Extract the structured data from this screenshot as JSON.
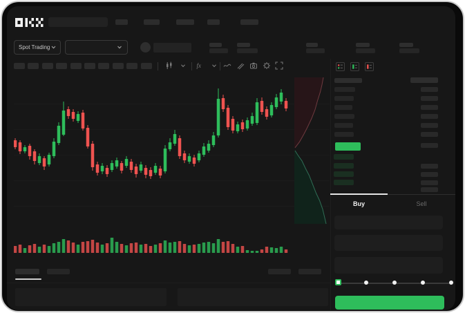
{
  "brand": {
    "logo": "OKX"
  },
  "header": {
    "nav_item_count": 5
  },
  "market_bar": {
    "market_type_label": "Spot Trading",
    "stat_pair_count": 5
  },
  "chart_toolbar": {
    "timeframe_button_count": 10,
    "icons": [
      "candle-style-icon",
      "chevron-down-icon",
      "indicators-fx-icon",
      "chevron-down-icon",
      "line-tool-icon",
      "draw-tool-icon",
      "camera-icon",
      "settings-gear-icon",
      "fullscreen-icon"
    ]
  },
  "order_book": {
    "view_icons": [
      "book-combined-icon",
      "book-buy-icon",
      "book-sell-icon"
    ],
    "ask_row_count": 6,
    "bid_row_count": 4,
    "amount_row_count": 4,
    "last_price_color": "#2EBD5B"
  },
  "trade_panel": {
    "buy_tab": "Buy",
    "sell_tab": "Sell",
    "input_count": 3,
    "slider_step_count": 5,
    "submit_color": "#2EBD5B"
  },
  "colors": {
    "up": "#2EBD5B",
    "down": "#EF5350",
    "app_bg": "#171717",
    "block": "#2C2C2C",
    "bid_row_tint": "rgba(46,189,91,0.15)"
  },
  "chart_data": [
    {
      "type": "candlestick",
      "title": "",
      "axis_labels": "none-visible",
      "up_color": "#2EBD5B",
      "down_color": "#EF5350",
      "columns": [
        "open",
        "high",
        "low",
        "close"
      ],
      "candles": [
        [
          137,
          140,
          124,
          127
        ],
        [
          134,
          137,
          117,
          121
        ],
        [
          121,
          130,
          118,
          127
        ],
        [
          129,
          132,
          109,
          114
        ],
        [
          121,
          124,
          102,
          107
        ],
        [
          104,
          118,
          101,
          114
        ],
        [
          111,
          114,
          94,
          99
        ],
        [
          102,
          119,
          99,
          116
        ],
        [
          114,
          140,
          111,
          135
        ],
        [
          133,
          163,
          130,
          158
        ],
        [
          145,
          193,
          143,
          180
        ],
        [
          182,
          186,
          168,
          172
        ],
        [
          178,
          182,
          164,
          168
        ],
        [
          165,
          179,
          162,
          175
        ],
        [
          177,
          181,
          151,
          154
        ],
        [
          155,
          159,
          125,
          128
        ],
        [
          132,
          136,
          93,
          98
        ],
        [
          102,
          106,
          86,
          90
        ],
        [
          92,
          104,
          88,
          100
        ],
        [
          97,
          101,
          84,
          88
        ],
        [
          94,
          108,
          91,
          104
        ],
        [
          99,
          112,
          96,
          108
        ],
        [
          104,
          107,
          89,
          93
        ],
        [
          100,
          114,
          97,
          110
        ],
        [
          106,
          110,
          90,
          94
        ],
        [
          99,
          103,
          83,
          88
        ],
        [
          93,
          106,
          90,
          102
        ],
        [
          97,
          101,
          82,
          87
        ],
        [
          94,
          98,
          81,
          85
        ],
        [
          90,
          104,
          87,
          100
        ],
        [
          96,
          100,
          82,
          86
        ],
        [
          92,
          130,
          89,
          125
        ],
        [
          124,
          140,
          121,
          134
        ],
        [
          132,
          152,
          129,
          146
        ],
        [
          140,
          144,
          110,
          114
        ],
        [
          118,
          122,
          104,
          108
        ],
        [
          106,
          118,
          103,
          114
        ],
        [
          112,
          116,
          99,
          103
        ],
        [
          108,
          122,
          105,
          118
        ],
        [
          116,
          133,
          113,
          128
        ],
        [
          122,
          137,
          119,
          132
        ],
        [
          130,
          149,
          127,
          144
        ],
        [
          144,
          212,
          141,
          197
        ],
        [
          198,
          203,
          178,
          182
        ],
        [
          184,
          188,
          152,
          156
        ],
        [
          168,
          172,
          147,
          151
        ],
        [
          150,
          164,
          147,
          160
        ],
        [
          163,
          167,
          149,
          153
        ],
        [
          154,
          170,
          151,
          166
        ],
        [
          161,
          177,
          158,
          172
        ],
        [
          162,
          198,
          159,
          192
        ],
        [
          194,
          199,
          174,
          178
        ],
        [
          182,
          186,
          167,
          171
        ],
        [
          173,
          192,
          170,
          188
        ],
        [
          185,
          204,
          182,
          199
        ],
        [
          193,
          211,
          189,
          206
        ],
        [
          194,
          198,
          179,
          183
        ]
      ],
      "volume": [
        10,
        12,
        7,
        11,
        13,
        9,
        12,
        10,
        14,
        16,
        20,
        18,
        15,
        12,
        16,
        17,
        19,
        15,
        12,
        14,
        22,
        16,
        13,
        11,
        14,
        15,
        12,
        13,
        10,
        12,
        14,
        18,
        15,
        16,
        17,
        13,
        11,
        12,
        13,
        15,
        16,
        14,
        20,
        16,
        17,
        13,
        9,
        10,
        4,
        3,
        3,
        5,
        9,
        8,
        7,
        9,
        5
      ]
    },
    {
      "type": "area",
      "name": "vertical-order-depth",
      "ask_fill": "#271518",
      "ask_line": "#6E3A3F",
      "bid_fill": "#10231B",
      "bid_line": "#2F6D55",
      "asks": [
        [
          0.84,
          0.0
        ],
        [
          0.8,
          0.05
        ],
        [
          0.75,
          0.1
        ],
        [
          0.67,
          0.16
        ],
        [
          0.6,
          0.22
        ],
        [
          0.5,
          0.28
        ],
        [
          0.38,
          0.34
        ],
        [
          0.27,
          0.39
        ],
        [
          0.15,
          0.44
        ],
        [
          0.02,
          0.48
        ]
      ],
      "bids": [
        [
          0.02,
          0.5
        ],
        [
          0.1,
          0.53
        ],
        [
          0.22,
          0.57
        ],
        [
          0.32,
          0.62
        ],
        [
          0.43,
          0.67
        ],
        [
          0.53,
          0.73
        ],
        [
          0.63,
          0.79
        ],
        [
          0.73,
          0.84
        ],
        [
          0.82,
          0.9
        ],
        [
          0.92,
          1.0
        ]
      ]
    }
  ]
}
